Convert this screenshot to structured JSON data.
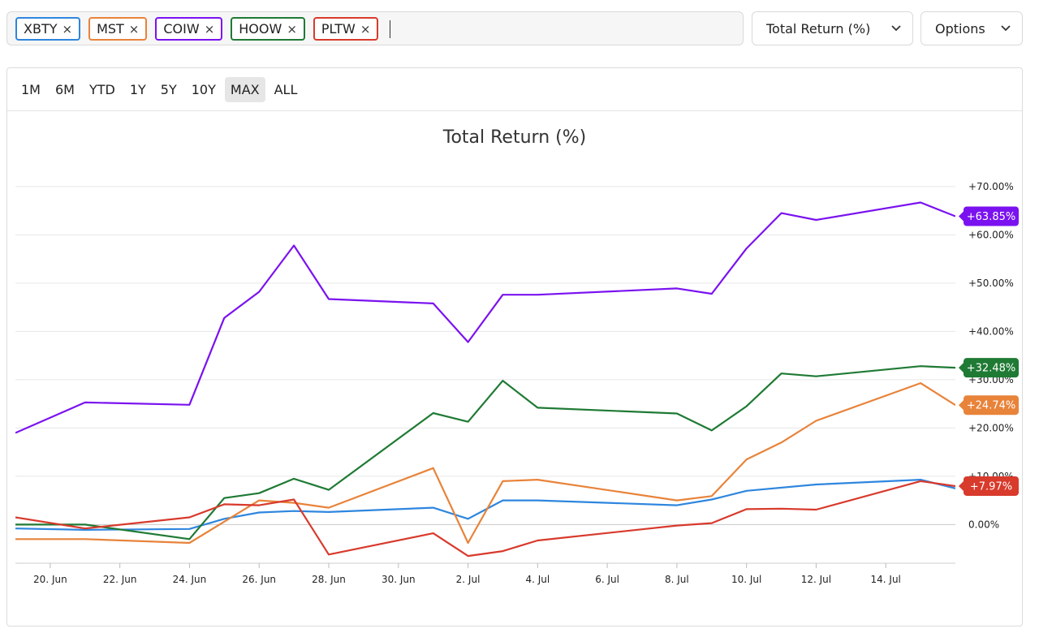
{
  "tickers": [
    {
      "symbol": "XBTY",
      "color": "#2e86de"
    },
    {
      "symbol": "MST",
      "color": "#e8833a"
    },
    {
      "symbol": "COIW",
      "color": "#7a12f0"
    },
    {
      "symbol": "HOOW",
      "color": "#1f7a34"
    },
    {
      "symbol": "PLTW",
      "color": "#d83a2c"
    }
  ],
  "remove_glyph": "×",
  "metric_dropdown": {
    "label": "Total Return (%)",
    "icon": "chevron-down-icon"
  },
  "options_dropdown": {
    "label": "Options",
    "icon": "chevron-down-icon"
  },
  "ranges": [
    "1M",
    "6M",
    "YTD",
    "1Y",
    "5Y",
    "10Y",
    "MAX",
    "ALL"
  ],
  "active_range": "MAX",
  "chart_data": {
    "type": "line",
    "title": "Total Return (%)",
    "xlabel": "",
    "ylabel": "",
    "x_ticks": [
      "20. Jun",
      "22. Jun",
      "24. Jun",
      "26. Jun",
      "28. Jun",
      "30. Jun",
      "2. Jul",
      "4. Jul",
      "6. Jul",
      "8. Jul",
      "10. Jul",
      "12. Jul",
      "14. Jul"
    ],
    "y_ticks": [
      "0.00%",
      "+10.00%",
      "+20.00%",
      "+30.00%",
      "+40.00%",
      "+50.00%",
      "+60.00%",
      "+70.00%"
    ],
    "y_tick_values": [
      0,
      10,
      20,
      30,
      40,
      50,
      60,
      70
    ],
    "ylim": [
      -8,
      72
    ],
    "x_range": [
      "2025-06-19",
      "2025-07-16"
    ],
    "grid": true,
    "legend_position": "bottom",
    "series": [
      {
        "name": "XBTY",
        "color": "#2e86de",
        "end_label": "",
        "points": [
          [
            "2025-06-19",
            -0.8
          ],
          [
            "2025-06-21",
            -1.1
          ],
          [
            "2025-06-24",
            -0.9
          ],
          [
            "2025-06-25",
            1.2
          ],
          [
            "2025-06-26",
            2.5
          ],
          [
            "2025-06-27",
            2.8
          ],
          [
            "2025-06-28",
            2.6
          ],
          [
            "2025-07-01",
            3.5
          ],
          [
            "2025-07-02",
            1.2
          ],
          [
            "2025-07-03",
            5.0
          ],
          [
            "2025-07-04",
            5.0
          ],
          [
            "2025-07-08",
            4.0
          ],
          [
            "2025-07-09",
            5.2
          ],
          [
            "2025-07-10",
            7.0
          ],
          [
            "2025-07-12",
            8.3
          ],
          [
            "2025-07-15",
            9.3
          ],
          [
            "2025-07-16",
            7.5
          ]
        ]
      },
      {
        "name": "MST",
        "color": "#e8833a",
        "end_label": "+24.74%",
        "points": [
          [
            "2025-06-19",
            -3.0
          ],
          [
            "2025-06-21",
            -3.0
          ],
          [
            "2025-06-24",
            -3.8
          ],
          [
            "2025-06-26",
            5.0
          ],
          [
            "2025-06-27",
            4.5
          ],
          [
            "2025-06-28",
            3.5
          ],
          [
            "2025-07-01",
            11.7
          ],
          [
            "2025-07-02",
            -3.8
          ],
          [
            "2025-07-03",
            9.0
          ],
          [
            "2025-07-04",
            9.3
          ],
          [
            "2025-07-08",
            5.0
          ],
          [
            "2025-07-09",
            5.9
          ],
          [
            "2025-07-10",
            13.5
          ],
          [
            "2025-07-11",
            17.0
          ],
          [
            "2025-07-12",
            21.5
          ],
          [
            "2025-07-15",
            29.3
          ],
          [
            "2025-07-16",
            24.74
          ]
        ]
      },
      {
        "name": "COIW",
        "color": "#7a12f0",
        "end_label": "+63.85%",
        "points": [
          [
            "2025-06-19",
            19.0
          ],
          [
            "2025-06-21",
            25.3
          ],
          [
            "2025-06-24",
            24.8
          ],
          [
            "2025-06-25",
            42.8
          ],
          [
            "2025-06-26",
            48.2
          ],
          [
            "2025-06-27",
            57.8
          ],
          [
            "2025-06-28",
            46.7
          ],
          [
            "2025-07-01",
            45.8
          ],
          [
            "2025-07-02",
            37.8
          ],
          [
            "2025-07-03",
            47.6
          ],
          [
            "2025-07-04",
            47.6
          ],
          [
            "2025-07-08",
            48.9
          ],
          [
            "2025-07-09",
            47.8
          ],
          [
            "2025-07-10",
            57.2
          ],
          [
            "2025-07-11",
            64.5
          ],
          [
            "2025-07-12",
            63.1
          ],
          [
            "2025-07-15",
            66.7
          ],
          [
            "2025-07-16",
            63.85
          ]
        ]
      },
      {
        "name": "HOOW",
        "color": "#1f7a34",
        "end_label": "+32.48%",
        "points": [
          [
            "2025-06-19",
            0.0
          ],
          [
            "2025-06-21",
            0.0
          ],
          [
            "2025-06-24",
            -3.0
          ],
          [
            "2025-06-25",
            5.5
          ],
          [
            "2025-06-26",
            6.5
          ],
          [
            "2025-06-27",
            9.5
          ],
          [
            "2025-06-28",
            7.2
          ],
          [
            "2025-07-01",
            23.1
          ],
          [
            "2025-07-02",
            21.3
          ],
          [
            "2025-07-03",
            29.8
          ],
          [
            "2025-07-04",
            24.2
          ],
          [
            "2025-07-08",
            23.0
          ],
          [
            "2025-07-09",
            19.5
          ],
          [
            "2025-07-10",
            24.5
          ],
          [
            "2025-07-11",
            31.3
          ],
          [
            "2025-07-12",
            30.7
          ],
          [
            "2025-07-15",
            32.8
          ],
          [
            "2025-07-16",
            32.48
          ]
        ]
      },
      {
        "name": "PLTW",
        "color": "#d83a2c",
        "end_label": "+7.97%",
        "points": [
          [
            "2025-06-19",
            1.5
          ],
          [
            "2025-06-21",
            -0.8
          ],
          [
            "2025-06-24",
            1.5
          ],
          [
            "2025-06-25",
            4.2
          ],
          [
            "2025-06-26",
            4.0
          ],
          [
            "2025-06-27",
            5.2
          ],
          [
            "2025-06-28",
            -6.2
          ],
          [
            "2025-07-01",
            -1.8
          ],
          [
            "2025-07-02",
            -6.5
          ],
          [
            "2025-07-03",
            -5.5
          ],
          [
            "2025-07-04",
            -3.3
          ],
          [
            "2025-07-08",
            -0.2
          ],
          [
            "2025-07-09",
            0.3
          ],
          [
            "2025-07-10",
            3.2
          ],
          [
            "2025-07-11",
            3.3
          ],
          [
            "2025-07-12",
            3.1
          ],
          [
            "2025-07-15",
            9.0
          ],
          [
            "2025-07-16",
            7.97
          ]
        ]
      }
    ]
  }
}
